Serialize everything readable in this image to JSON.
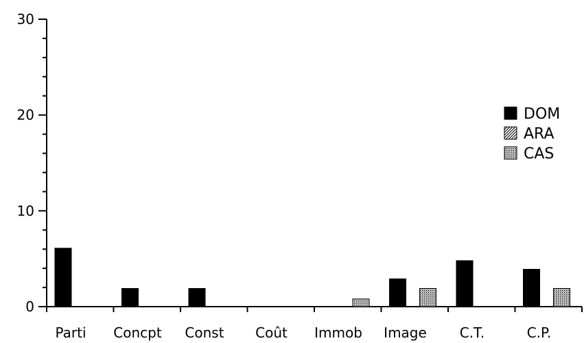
{
  "chart_data": {
    "type": "bar",
    "title": "",
    "xlabel": "",
    "ylabel": "",
    "ylim": [
      0,
      30
    ],
    "yticks": [
      0,
      10,
      20,
      30
    ],
    "grid": false,
    "legend_position": "right",
    "categories": [
      "Parti",
      "Concpt",
      "Const",
      "Coût",
      "Immob",
      "Image",
      "C.T.",
      "C.P."
    ],
    "series": [
      {
        "name": "DOM",
        "pattern": "solid",
        "color": "#000000",
        "values": [
          6.1,
          1.9,
          1.9,
          0,
          0,
          2.9,
          4.8,
          3.9
        ]
      },
      {
        "name": "ARA",
        "pattern": "hatch",
        "color": "#000000",
        "values": [
          0,
          0,
          0,
          0,
          0,
          0,
          0,
          0
        ]
      },
      {
        "name": "CAS",
        "pattern": "dots",
        "color": "#000000",
        "values": [
          0,
          0,
          0,
          0,
          0.8,
          1.9,
          0,
          1.9
        ]
      }
    ]
  }
}
